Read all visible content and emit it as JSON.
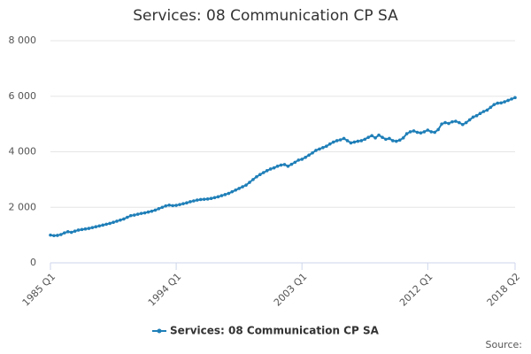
{
  "chart_data": {
    "type": "line",
    "title": "Services: 08 Communication CP SA",
    "source": "Source:",
    "categories": [
      "1985 Q1",
      null,
      null,
      null,
      null,
      null,
      null,
      null,
      null,
      null,
      null,
      null,
      null,
      null,
      null,
      null,
      null,
      null,
      null,
      null,
      null,
      null,
      null,
      null,
      null,
      null,
      null,
      null,
      null,
      null,
      null,
      null,
      null,
      null,
      null,
      null,
      "1994 Q1",
      null,
      null,
      null,
      null,
      null,
      null,
      null,
      null,
      null,
      null,
      null,
      null,
      null,
      null,
      null,
      null,
      null,
      null,
      null,
      null,
      null,
      null,
      null,
      null,
      null,
      null,
      null,
      null,
      null,
      null,
      null,
      null,
      null,
      null,
      null,
      "2003 Q1",
      null,
      null,
      null,
      null,
      null,
      null,
      null,
      null,
      null,
      null,
      null,
      null,
      null,
      null,
      null,
      null,
      null,
      null,
      null,
      null,
      null,
      null,
      null,
      null,
      null,
      null,
      null,
      null,
      null,
      null,
      null,
      null,
      null,
      null,
      null,
      "2012 Q1",
      null,
      null,
      null,
      null,
      null,
      null,
      null,
      null,
      null,
      null,
      null,
      null,
      null,
      null,
      null,
      null,
      null,
      null,
      null,
      null,
      null,
      null,
      null,
      null,
      "2018 Q2"
    ],
    "series": [
      {
        "name": "Services: 08 Communication CP SA",
        "color": "#1f7fb8",
        "values": [
          1000,
          980,
          990,
          1020,
          1080,
          1120,
          1100,
          1140,
          1180,
          1200,
          1220,
          1240,
          1270,
          1300,
          1330,
          1360,
          1390,
          1420,
          1460,
          1500,
          1540,
          1580,
          1640,
          1700,
          1720,
          1750,
          1780,
          1800,
          1830,
          1860,
          1900,
          1950,
          2000,
          2050,
          2080,
          2060,
          2070,
          2100,
          2130,
          2160,
          2200,
          2230,
          2260,
          2280,
          2290,
          2300,
          2320,
          2350,
          2380,
          2420,
          2460,
          2500,
          2560,
          2620,
          2680,
          2740,
          2800,
          2900,
          3000,
          3100,
          3180,
          3250,
          3320,
          3380,
          3420,
          3480,
          3520,
          3540,
          3480,
          3550,
          3620,
          3700,
          3730,
          3800,
          3880,
          3960,
          4050,
          4100,
          4150,
          4200,
          4280,
          4350,
          4400,
          4430,
          4480,
          4400,
          4320,
          4350,
          4380,
          4400,
          4450,
          4520,
          4580,
          4500,
          4600,
          4520,
          4450,
          4480,
          4400,
          4380,
          4420,
          4500,
          4650,
          4720,
          4750,
          4700,
          4680,
          4720,
          4780,
          4720,
          4700,
          4800,
          5000,
          5050,
          5020,
          5080,
          5100,
          5050,
          4980,
          5050,
          5150,
          5250,
          5300,
          5380,
          5450,
          5500,
          5600,
          5700,
          5750,
          5760,
          5800,
          5850,
          5900,
          5950
        ]
      }
    ],
    "ylim": [
      0,
      8000
    ],
    "yticks": [
      0,
      {
        "value": 2000,
        "label": "2 000"
      },
      {
        "value": 4000,
        "label": "4 000"
      },
      {
        "value": 6000,
        "label": "6 000"
      },
      {
        "value": 8000,
        "label": "8 000"
      }
    ],
    "grid": true
  }
}
